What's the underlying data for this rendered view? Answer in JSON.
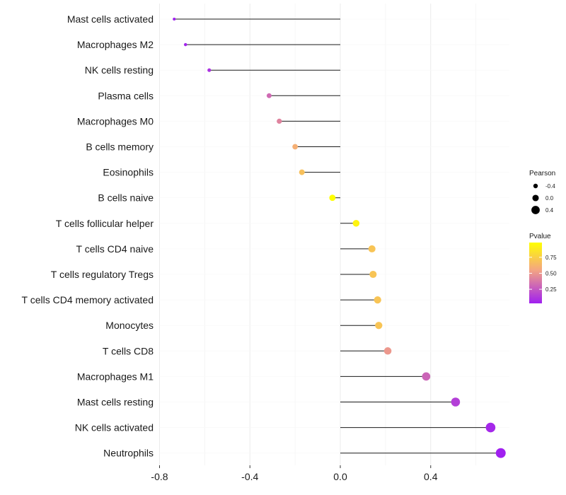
{
  "chart_data": {
    "type": "lollipop",
    "title": "",
    "xlabel": "",
    "ylabel": "",
    "xlim": [
      -0.8,
      0.72
    ],
    "x_ticks": [
      -0.8,
      -0.4,
      0.0,
      0.4
    ],
    "x_tick_labels": [
      "-0.8",
      "-0.4",
      "0.0",
      "0.4"
    ],
    "grid": true,
    "legend_position": "right",
    "categories": [
      "Mast cells activated",
      "Macrophages M2",
      "NK cells resting",
      "Plasma cells",
      "Macrophages M0",
      "B cells memory",
      "Eosinophils",
      "B cells naive",
      "T cells follicular helper",
      "T cells CD4 naive",
      "T cells regulatory  Tregs",
      "T cells CD4 memory activated",
      "Monocytes",
      "T cells CD8",
      "Macrophages M1",
      "Mast cells resting",
      "NK cells activated",
      "Neutrophils"
    ],
    "pearson": [
      -0.735,
      -0.685,
      -0.58,
      -0.315,
      -0.27,
      -0.2,
      -0.17,
      -0.035,
      0.07,
      0.14,
      0.145,
      0.165,
      0.17,
      0.21,
      0.38,
      0.51,
      0.665,
      0.71
    ],
    "pvalue": [
      0.03,
      0.05,
      0.1,
      0.32,
      0.42,
      0.6,
      0.68,
      0.98,
      0.93,
      0.7,
      0.7,
      0.7,
      0.7,
      0.5,
      0.3,
      0.15,
      0.06,
      0.03
    ],
    "size_legend": {
      "title": "Pearson",
      "breaks": [
        -0.4,
        0.0,
        0.4
      ],
      "labels": [
        "-0.4",
        "0.0",
        "0.4"
      ]
    },
    "color_legend": {
      "title": "Pvalue",
      "breaks": [
        0.25,
        0.5,
        0.75
      ],
      "labels": [
        "0.25",
        "0.50",
        "0.75"
      ],
      "low_color": "#A020F0",
      "mid_color": "#F4A582",
      "high_color": "#FFFF00"
    }
  }
}
